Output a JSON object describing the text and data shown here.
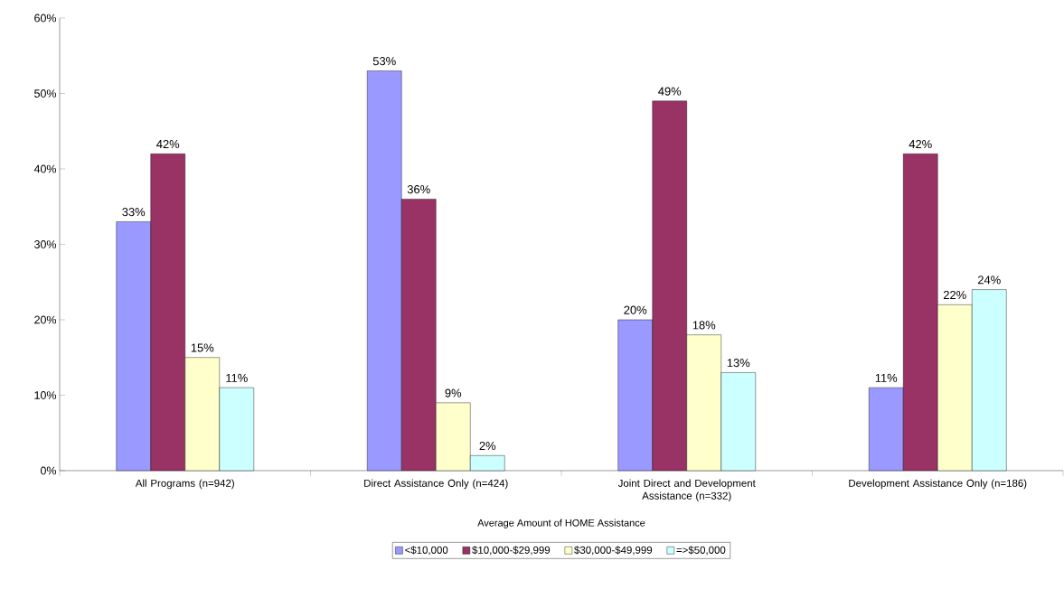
{
  "chart_data": {
    "type": "bar",
    "xlabel": "Average Amount of HOME Assistance",
    "categories": [
      "All Programs (n=942)",
      "Direct Assistance Only (n=424)",
      "Joint Direct and Development Assistance (n=332)",
      "Development Assistance Only (n=186)"
    ],
    "series": [
      {
        "name": "<$10,000",
        "color": "#9999ff",
        "values": [
          33,
          53,
          20,
          11
        ],
        "value_labels": [
          "33%",
          "53%",
          "20%",
          "11%"
        ]
      },
      {
        "name": "$10,000-$29,999",
        "color": "#993366",
        "values": [
          42,
          36,
          49,
          42
        ],
        "value_labels": [
          "42%",
          "36%",
          "49%",
          "42%"
        ]
      },
      {
        "name": "$30,000-$49,999",
        "color": "#ffffcc",
        "values": [
          15,
          9,
          18,
          22
        ],
        "value_labels": [
          "15%",
          "9%",
          "18%",
          "22%"
        ]
      },
      {
        "name": "=>$50,000",
        "color": "#ccffff",
        "values": [
          11,
          2,
          13,
          24
        ],
        "value_labels": [
          "11%",
          "2%",
          "13%",
          "24%"
        ]
      }
    ],
    "ylim": [
      0,
      60
    ],
    "yticks": [
      {
        "value": 0,
        "label": "0%"
      },
      {
        "value": 10,
        "label": "10%"
      },
      {
        "value": 20,
        "label": "20%"
      },
      {
        "value": 30,
        "label": "30%"
      },
      {
        "value": 40,
        "label": "40%"
      },
      {
        "value": 50,
        "label": "50%"
      },
      {
        "value": 60,
        "label": "60%"
      }
    ],
    "grid": false,
    "legend": "bottom"
  }
}
